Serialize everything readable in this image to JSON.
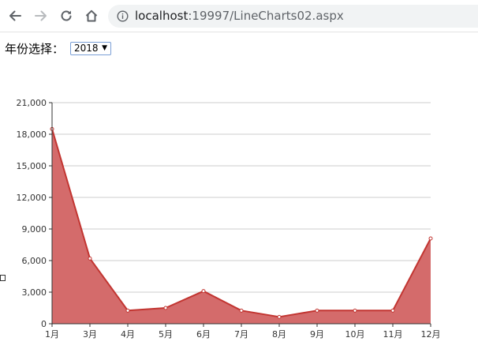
{
  "browser": {
    "url_host": "localhost",
    "url_rest": ":19997/LineCharts02.aspx",
    "icons": [
      "back-arrow-icon",
      "forward-arrow-icon",
      "reload-icon",
      "home-icon",
      "info-icon"
    ]
  },
  "filter": {
    "label": "年份选择：",
    "selected_year": "2018"
  },
  "colors": {
    "area": "#d46b6b",
    "line": "#c23531",
    "grid": "#cccccc",
    "axis": "#333333"
  },
  "chart_data": {
    "type": "area",
    "categories": [
      "1月",
      "3月",
      "4月",
      "5月",
      "6月",
      "7月",
      "8月",
      "9月",
      "10月",
      "11月",
      "12月"
    ],
    "values": [
      18500,
      6200,
      1250,
      1500,
      3100,
      1250,
      650,
      1250,
      1250,
      1250,
      8100
    ],
    "ylim": [
      0,
      21000
    ],
    "yticks": [
      "0",
      "3,000",
      "6,000",
      "9,000",
      "12,000",
      "15,000",
      "18,000",
      "21,000"
    ],
    "grid": true,
    "legend": "none"
  }
}
